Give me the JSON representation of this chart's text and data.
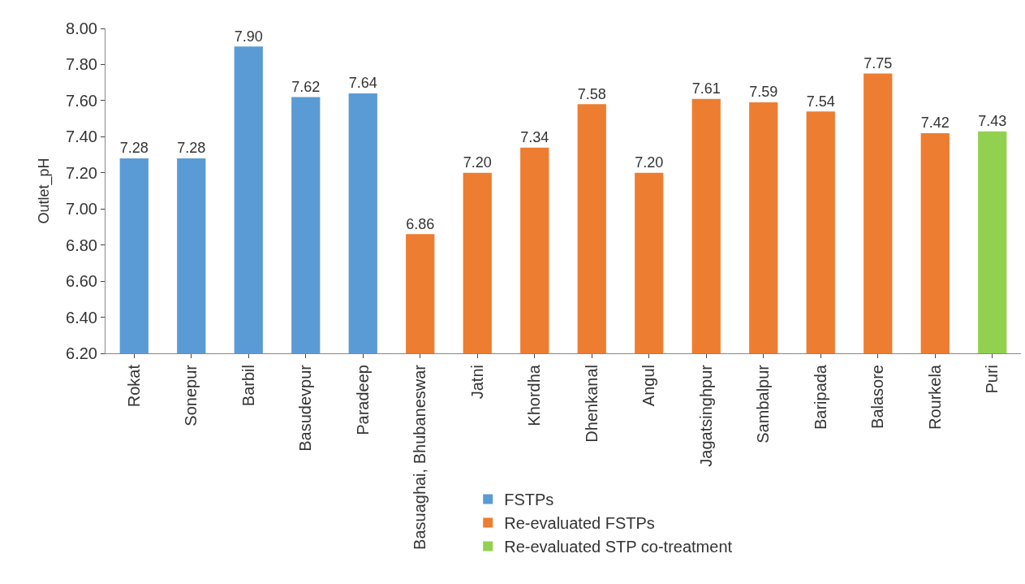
{
  "chart_data": {
    "type": "bar",
    "ylabel": "Outlet_pH",
    "categories": [
      "Rokat",
      "Sonepur",
      "Barbil",
      "Basudevpur",
      "Paradeep",
      "Basuaghai, Bhubaneswar",
      "Jatni",
      "Khordha",
      "Dhenkanal",
      "Angul",
      "Jagatsinghpur",
      "Sambalpur",
      "Baripada",
      "Balasore",
      "Rourkela",
      "Puri"
    ],
    "series": [
      {
        "name": "FSTPs",
        "color": "#5b9bd5",
        "values": [
          7.28,
          7.28,
          7.9,
          7.62,
          7.64,
          null,
          null,
          null,
          null,
          null,
          null,
          null,
          null,
          null,
          null,
          null
        ],
        "value_labels": [
          "7.28",
          "7.28",
          "7.90",
          "7.62",
          "7.64",
          null,
          null,
          null,
          null,
          null,
          null,
          null,
          null,
          null,
          null,
          null
        ]
      },
      {
        "name": "Re-evaluated FSTPs",
        "color": "#ed7d31",
        "values": [
          null,
          null,
          null,
          null,
          null,
          6.86,
          7.2,
          7.34,
          7.58,
          7.2,
          7.61,
          7.59,
          7.54,
          7.75,
          7.42,
          null
        ],
        "value_labels": [
          null,
          null,
          null,
          null,
          null,
          "6.86",
          "7.20",
          "7.34",
          "7.58",
          "7.20",
          "7.61",
          "7.59",
          "7.54",
          "7.75",
          "7.42",
          null
        ]
      },
      {
        "name": "Re-evaluated STP co-treatment",
        "color": "#92d050",
        "values": [
          null,
          null,
          null,
          null,
          null,
          null,
          null,
          null,
          null,
          null,
          null,
          null,
          null,
          null,
          null,
          7.43
        ],
        "value_labels": [
          null,
          null,
          null,
          null,
          null,
          null,
          null,
          null,
          null,
          null,
          null,
          null,
          null,
          null,
          null,
          "7.43"
        ]
      }
    ],
    "ylim": [
      6.2,
      8.0
    ],
    "yticks": [
      {
        "value": 6.2,
        "label": "6.20"
      },
      {
        "value": 6.4,
        "label": "6.40"
      },
      {
        "value": 6.6,
        "label": "6.60"
      },
      {
        "value": 6.8,
        "label": "6.80"
      },
      {
        "value": 7.0,
        "label": "7.00"
      },
      {
        "value": 7.2,
        "label": "7.20"
      },
      {
        "value": 7.4,
        "label": "7.40"
      },
      {
        "value": 7.6,
        "label": "7.60"
      },
      {
        "value": 7.8,
        "label": "7.80"
      },
      {
        "value": 8.0,
        "label": "8.00"
      }
    ],
    "grid": false,
    "legend": "bottom"
  }
}
